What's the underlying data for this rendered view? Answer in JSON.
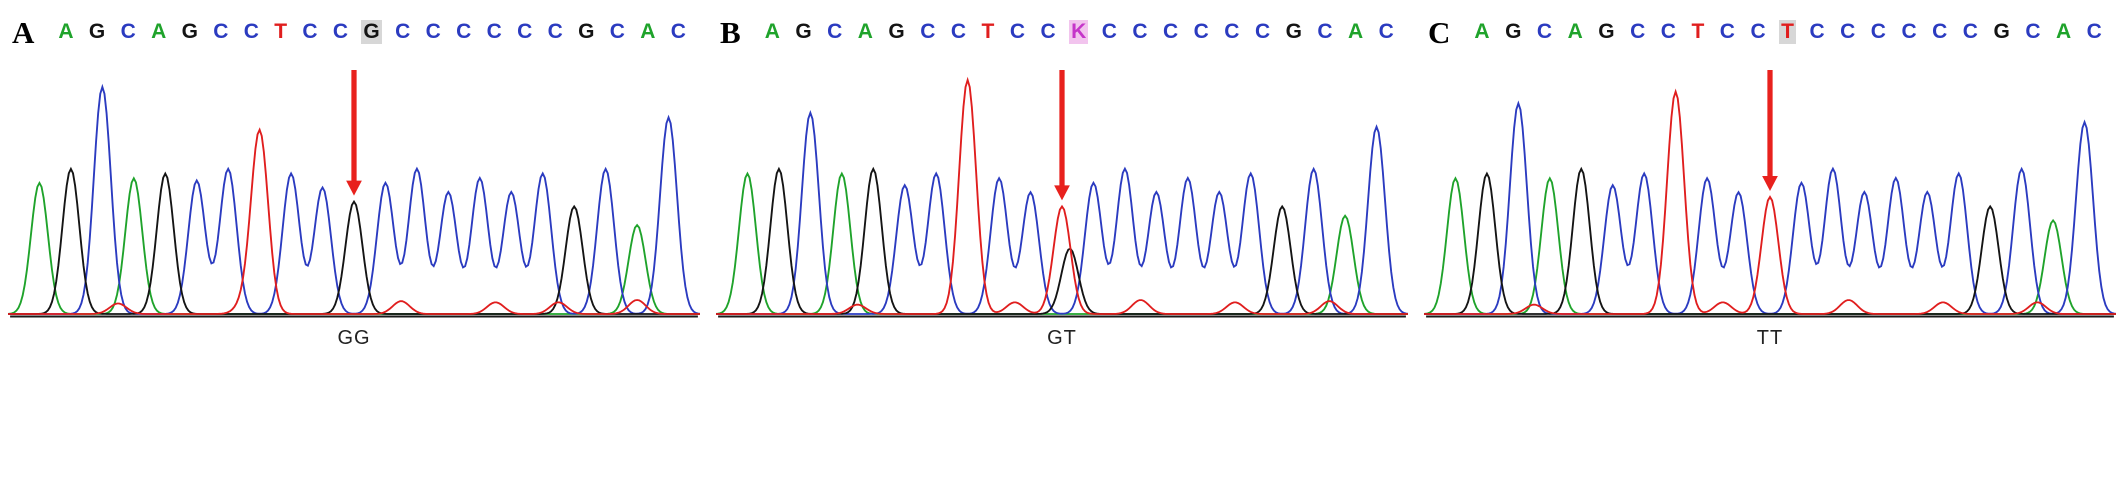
{
  "figure_name": "Sanger sequencing chromatograms",
  "arrow_color": "#e8211d",
  "baseline_color": "#1a1a1a",
  "chart_data": {
    "type": "line",
    "description": "Three Sanger sequencing chromatogram traces (fluorescence intensity per base call) for three genotypes at the highlighted variant position",
    "legend_position": "none",
    "grid": false,
    "base_colors": {
      "A": "#1fa32b",
      "C": "#2b3bc0",
      "G": "#141414",
      "T": "#e01e1e",
      "K": "#c535c9"
    },
    "panels": [
      {
        "label": "A",
        "genotype": "GG",
        "variant_index": 10,
        "sequence": [
          "A",
          "G",
          "C",
          "A",
          "G",
          "C",
          "C",
          "T",
          "C",
          "C",
          "G",
          "C",
          "C",
          "C",
          "C",
          "C",
          "C",
          "G",
          "C",
          "A",
          "C"
        ],
        "highlight": {
          "index": 10,
          "base": "G",
          "bg": "#d7d7d7"
        },
        "peaks": [
          {
            "i": 0,
            "b": "A",
            "h": 0.56
          },
          {
            "i": 1,
            "b": "G",
            "h": 0.62
          },
          {
            "i": 2,
            "b": "C",
            "h": 0.97
          },
          {
            "i": 3,
            "b": "A",
            "h": 0.58
          },
          {
            "i": 4,
            "b": "G",
            "h": 0.6
          },
          {
            "i": 5,
            "b": "C",
            "h": 0.57
          },
          {
            "i": 6,
            "b": "C",
            "h": 0.62
          },
          {
            "i": 7,
            "b": "T",
            "h": 0.78
          },
          {
            "i": 8,
            "b": "C",
            "h": 0.6
          },
          {
            "i": 9,
            "b": "C",
            "h": 0.54
          },
          {
            "i": 10,
            "b": "G",
            "h": 0.48
          },
          {
            "i": 11,
            "b": "C",
            "h": 0.56
          },
          {
            "i": 12,
            "b": "C",
            "h": 0.62
          },
          {
            "i": 13,
            "b": "C",
            "h": 0.52
          },
          {
            "i": 14,
            "b": "C",
            "h": 0.58
          },
          {
            "i": 15,
            "b": "C",
            "h": 0.52
          },
          {
            "i": 16,
            "b": "C",
            "h": 0.6
          },
          {
            "i": 17,
            "b": "G",
            "h": 0.46
          },
          {
            "i": 18,
            "b": "C",
            "h": 0.62
          },
          {
            "i": 19,
            "b": "A",
            "h": 0.38
          },
          {
            "i": 20,
            "b": "C",
            "h": 0.84
          },
          {
            "i": 2.5,
            "b": "T",
            "h": 0.045
          },
          {
            "i": 6.5,
            "b": "T",
            "h": 0.04
          },
          {
            "i": 11.5,
            "b": "T",
            "h": 0.055
          },
          {
            "i": 14.5,
            "b": "T",
            "h": 0.05
          },
          {
            "i": 16.5,
            "b": "T",
            "h": 0.05
          },
          {
            "i": 19,
            "b": "T",
            "h": 0.06
          }
        ]
      },
      {
        "label": "B",
        "genotype": "GT",
        "variant_index": 10,
        "sequence": [
          "A",
          "G",
          "C",
          "A",
          "G",
          "C",
          "C",
          "T",
          "C",
          "C",
          "K",
          "C",
          "C",
          "C",
          "C",
          "C",
          "C",
          "G",
          "C",
          "A",
          "C"
        ],
        "highlight": {
          "index": 10,
          "base": "K",
          "bg": "#f2c4ee"
        },
        "peaks": [
          {
            "i": 0,
            "b": "A",
            "h": 0.6
          },
          {
            "i": 1,
            "b": "G",
            "h": 0.62
          },
          {
            "i": 2,
            "b": "C",
            "h": 0.86
          },
          {
            "i": 3,
            "b": "A",
            "h": 0.6
          },
          {
            "i": 4,
            "b": "G",
            "h": 0.62
          },
          {
            "i": 5,
            "b": "C",
            "h": 0.55
          },
          {
            "i": 6,
            "b": "C",
            "h": 0.6
          },
          {
            "i": 7,
            "b": "T",
            "h": 1.0
          },
          {
            "i": 8,
            "b": "C",
            "h": 0.58
          },
          {
            "i": 9,
            "b": "C",
            "h": 0.52
          },
          {
            "i": 10,
            "b": "T",
            "h": 0.46
          },
          {
            "i": 10.25,
            "b": "G",
            "h": 0.28
          },
          {
            "i": 11,
            "b": "C",
            "h": 0.56
          },
          {
            "i": 12,
            "b": "C",
            "h": 0.62
          },
          {
            "i": 13,
            "b": "C",
            "h": 0.52
          },
          {
            "i": 14,
            "b": "C",
            "h": 0.58
          },
          {
            "i": 15,
            "b": "C",
            "h": 0.52
          },
          {
            "i": 16,
            "b": "C",
            "h": 0.6
          },
          {
            "i": 17,
            "b": "G",
            "h": 0.46
          },
          {
            "i": 18,
            "b": "C",
            "h": 0.62
          },
          {
            "i": 19,
            "b": "A",
            "h": 0.42
          },
          {
            "i": 20,
            "b": "C",
            "h": 0.8
          },
          {
            "i": 3.5,
            "b": "T",
            "h": 0.04
          },
          {
            "i": 8.5,
            "b": "T",
            "h": 0.05
          },
          {
            "i": 12.5,
            "b": "T",
            "h": 0.06
          },
          {
            "i": 15.5,
            "b": "T",
            "h": 0.05
          },
          {
            "i": 18.5,
            "b": "T",
            "h": 0.055
          }
        ]
      },
      {
        "label": "C",
        "genotype": "TT",
        "variant_index": 10,
        "sequence": [
          "A",
          "G",
          "C",
          "A",
          "G",
          "C",
          "C",
          "T",
          "C",
          "C",
          "T",
          "C",
          "C",
          "C",
          "C",
          "C",
          "C",
          "G",
          "C",
          "A",
          "C"
        ],
        "highlight": {
          "index": 10,
          "base": "T",
          "bg": "#d7d7d7"
        },
        "peaks": [
          {
            "i": 0,
            "b": "A",
            "h": 0.58
          },
          {
            "i": 1,
            "b": "G",
            "h": 0.6
          },
          {
            "i": 2,
            "b": "C",
            "h": 0.9
          },
          {
            "i": 3,
            "b": "A",
            "h": 0.58
          },
          {
            "i": 4,
            "b": "G",
            "h": 0.62
          },
          {
            "i": 5,
            "b": "C",
            "h": 0.55
          },
          {
            "i": 6,
            "b": "C",
            "h": 0.6
          },
          {
            "i": 7,
            "b": "T",
            "h": 0.95
          },
          {
            "i": 8,
            "b": "C",
            "h": 0.58
          },
          {
            "i": 9,
            "b": "C",
            "h": 0.52
          },
          {
            "i": 10,
            "b": "T",
            "h": 0.5
          },
          {
            "i": 11,
            "b": "C",
            "h": 0.56
          },
          {
            "i": 12,
            "b": "C",
            "h": 0.62
          },
          {
            "i": 13,
            "b": "C",
            "h": 0.52
          },
          {
            "i": 14,
            "b": "C",
            "h": 0.58
          },
          {
            "i": 15,
            "b": "C",
            "h": 0.52
          },
          {
            "i": 16,
            "b": "C",
            "h": 0.6
          },
          {
            "i": 17,
            "b": "G",
            "h": 0.46
          },
          {
            "i": 18,
            "b": "C",
            "h": 0.62
          },
          {
            "i": 19,
            "b": "A",
            "h": 0.4
          },
          {
            "i": 20,
            "b": "C",
            "h": 0.82
          },
          {
            "i": 2.5,
            "b": "T",
            "h": 0.04
          },
          {
            "i": 8.5,
            "b": "T",
            "h": 0.05
          },
          {
            "i": 12.5,
            "b": "T",
            "h": 0.06
          },
          {
            "i": 15.5,
            "b": "T",
            "h": 0.05
          },
          {
            "i": 18.5,
            "b": "T",
            "h": 0.05
          }
        ]
      }
    ]
  }
}
